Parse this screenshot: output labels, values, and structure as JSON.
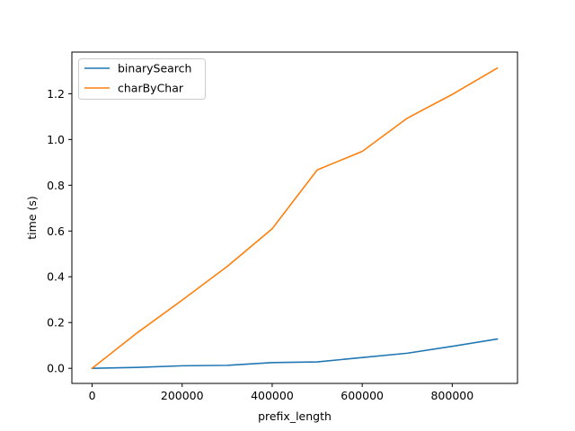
{
  "chart_data": {
    "type": "line",
    "title": "",
    "xlabel": "prefix_length",
    "ylabel": "time (s)",
    "xlim": [
      -45000,
      945000
    ],
    "ylim": [
      -0.066,
      1.382
    ],
    "xticks": [
      0,
      200000,
      400000,
      600000,
      800000
    ],
    "xtick_labels": [
      "0",
      "200000",
      "400000",
      "600000",
      "800000"
    ],
    "yticks": [
      0.0,
      0.2,
      0.4,
      0.6,
      0.8,
      1.0,
      1.2
    ],
    "ytick_labels": [
      "0.0",
      "0.2",
      "0.4",
      "0.6",
      "0.8",
      "1.0",
      "1.2"
    ],
    "grid": false,
    "legend_position": "upper-left",
    "x": [
      0,
      100000,
      200000,
      300000,
      400000,
      500000,
      600000,
      700000,
      800000,
      900000
    ],
    "series": [
      {
        "name": "binarySearch",
        "color": "#1f77b4",
        "values": [
          0.0,
          0.004,
          0.011,
          0.013,
          0.025,
          0.028,
          0.047,
          0.066,
          0.096,
          0.128
        ]
      },
      {
        "name": "charByChar",
        "color": "#ff7f0e",
        "values": [
          0.0,
          0.155,
          0.298,
          0.445,
          0.61,
          0.867,
          0.948,
          1.093,
          1.197,
          1.312
        ]
      }
    ]
  }
}
